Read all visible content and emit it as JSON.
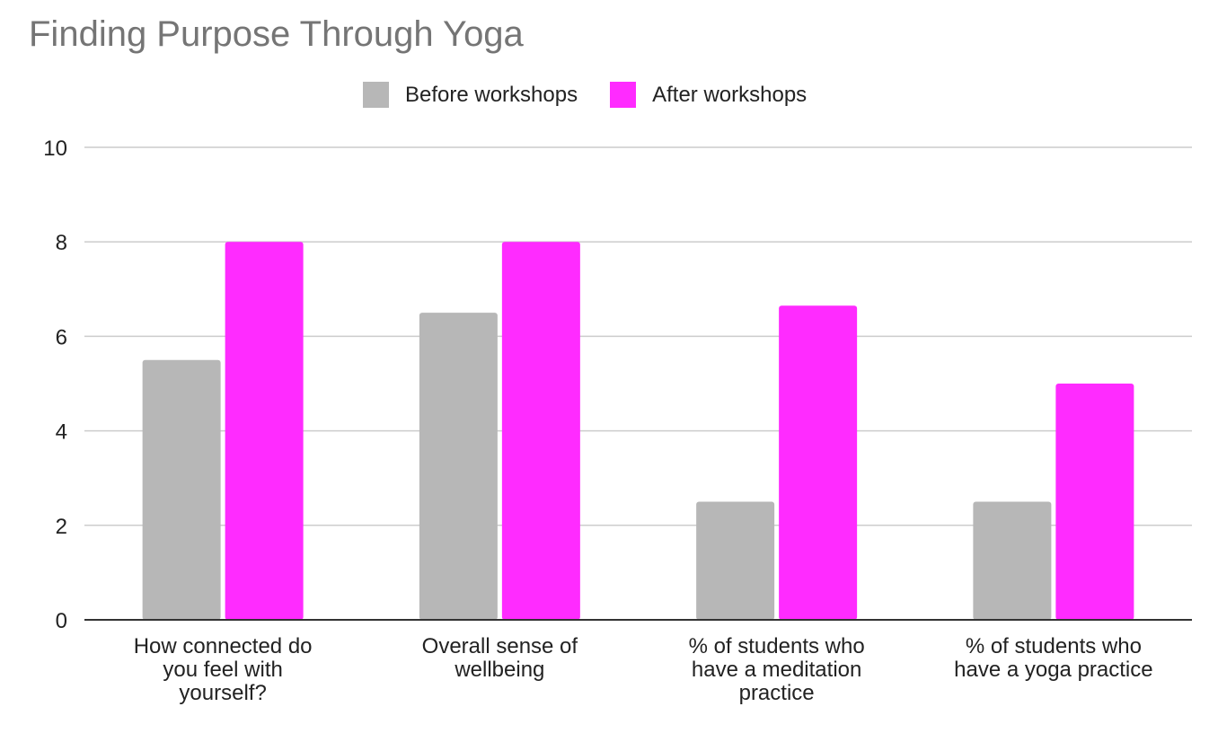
{
  "chart_data": {
    "type": "bar",
    "title": "Finding Purpose Through Yoga",
    "xlabel": "",
    "ylabel": "",
    "categories": [
      [
        "How connected do",
        "you feel with",
        "yourself?"
      ],
      [
        "Overall sense of",
        "wellbeing"
      ],
      [
        "% of students who",
        "have a meditation",
        "practice"
      ],
      [
        "% of students who",
        "have a yoga practice"
      ]
    ],
    "series": [
      {
        "name": "Before workshops",
        "color": "#b7b7b7",
        "values": [
          5.5,
          6.5,
          2.5,
          2.5
        ]
      },
      {
        "name": "After workshops",
        "color": "#ff2bff",
        "values": [
          8,
          8,
          6.65,
          5
        ]
      }
    ],
    "ylim": [
      0,
      10
    ],
    "yticks": [
      0,
      2,
      4,
      6,
      8,
      10
    ],
    "grid": true,
    "legend_position": "top"
  }
}
